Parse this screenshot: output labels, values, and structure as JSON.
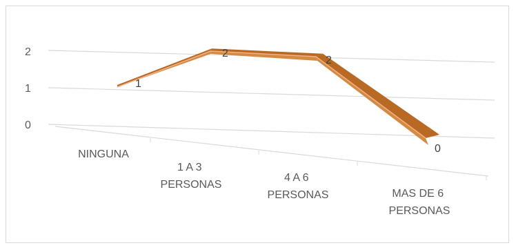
{
  "chart_data": {
    "type": "line",
    "style": "3d-ribbon",
    "categories": [
      [
        "NINGUNA"
      ],
      [
        "1 A 3",
        "PERSONAS"
      ],
      [
        "4 A 6",
        "PERSONAS"
      ],
      [
        "MAS DE 6",
        "PERSONAS"
      ]
    ],
    "series": [
      {
        "values": [
          1,
          2,
          2,
          0
        ]
      }
    ],
    "data_labels": [
      "1",
      "2",
      "2",
      "0"
    ],
    "y_ticks": [
      "0",
      "1",
      "2"
    ],
    "ylim": [
      0,
      2
    ],
    "grid": true,
    "legend": "none",
    "colors": {
      "ribbon_front": "#d58a43",
      "ribbon_top": "#b86a25",
      "ribbon_edge": "#f4b183",
      "gridline": "#d9d9d9",
      "text": "#595959"
    }
  }
}
